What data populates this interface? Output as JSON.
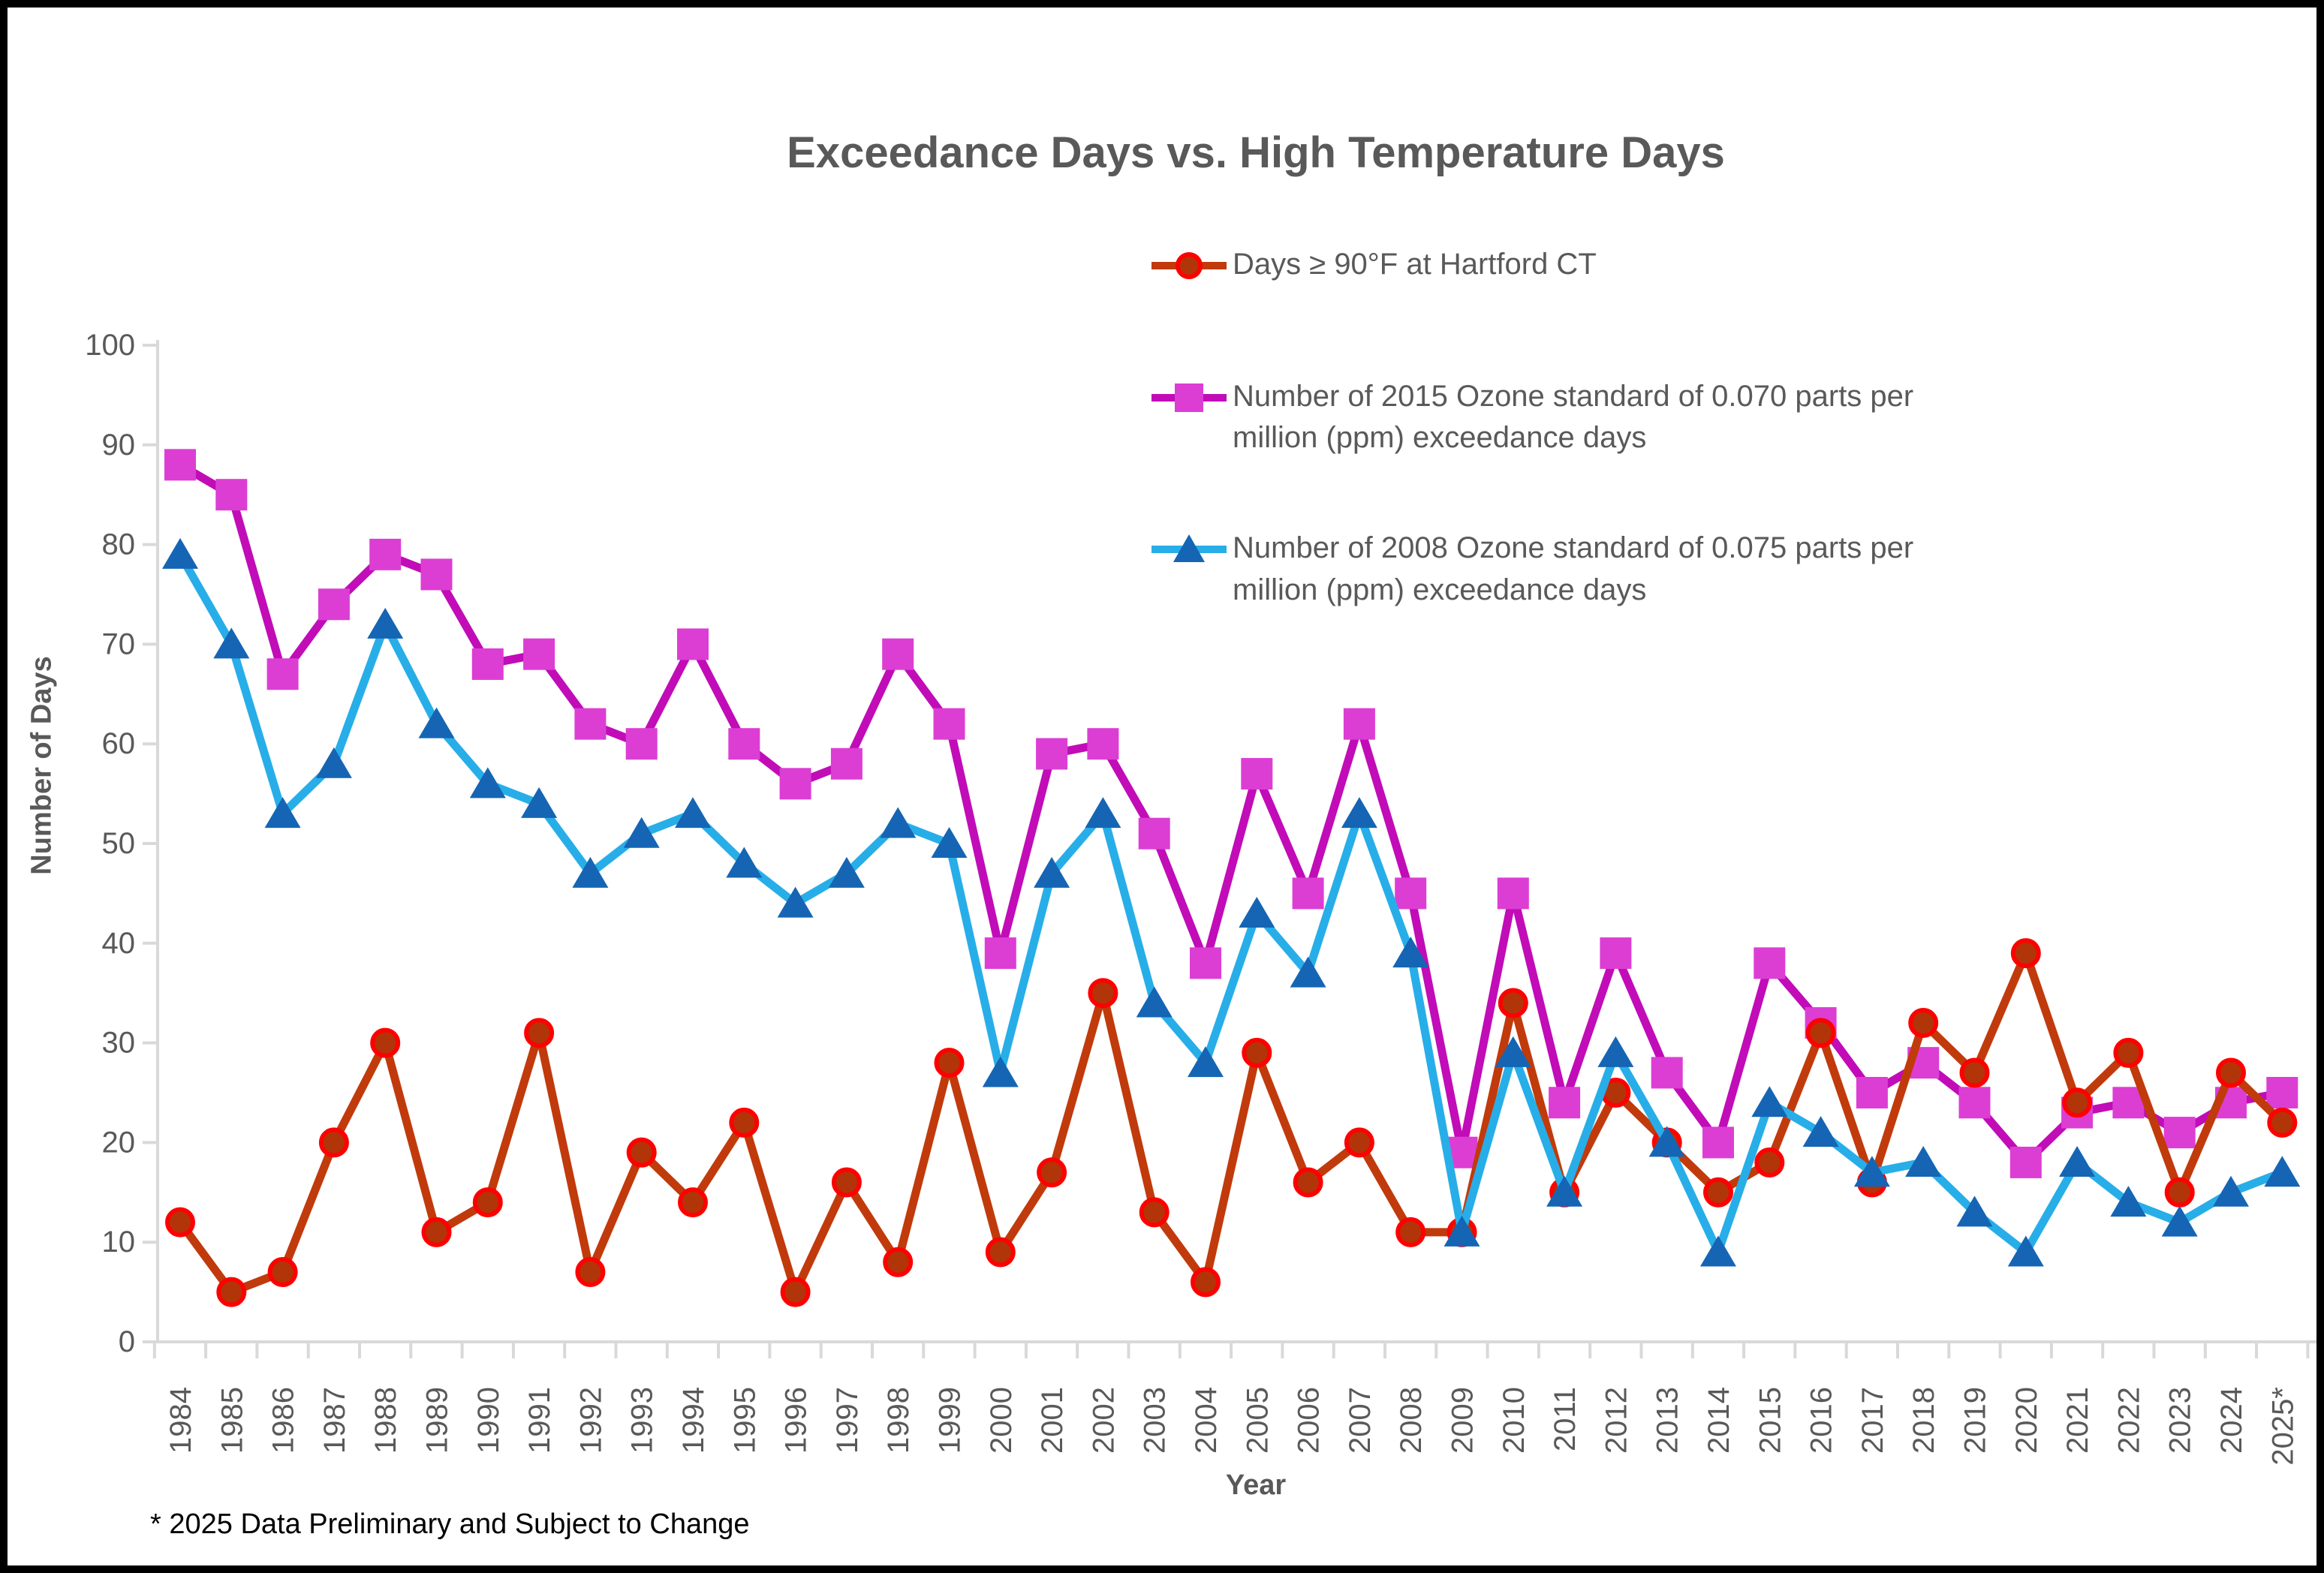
{
  "window": {
    "background": "#FFFFFF",
    "border_color": "#000000"
  },
  "title": "Exceedance Days vs. High Temperature Days",
  "footnote": "* 2025 Data Preliminary and Subject to Change",
  "colors": {
    "title_text": "#595959",
    "axis_text": "#595959",
    "axis_line": "#D9D9D9",
    "footnote_text": "#000000",
    "red_line": "#C13A0C",
    "red_marker_fill": "#B23509",
    "red_marker_outline": "#FE0000",
    "magenta_line": "#C10CB8",
    "magenta_marker_fill": "#DC3ED4",
    "blue_line": "#27AEE8",
    "blue_marker_fill": "#1565B4"
  },
  "chart_data": {
    "type": "line",
    "title": "Exceedance Days vs. High Temperature Days",
    "xlabel": "Year",
    "ylabel": "Number of Days",
    "ylim": [
      0,
      100
    ],
    "ytick_step": 10,
    "grid": false,
    "legend_position": "top-right",
    "categories": [
      "1984",
      "1985",
      "1986",
      "1987",
      "1988",
      "1989",
      "1990",
      "1991",
      "1992",
      "1993",
      "1994",
      "1995",
      "1996",
      "1997",
      "1998",
      "1999",
      "2000",
      "2001",
      "2002",
      "2003",
      "2004",
      "2005",
      "2006",
      "2007",
      "2008",
      "2009",
      "2010",
      "2011",
      "2012",
      "2013",
      "2014",
      "2015",
      "2016",
      "2017",
      "2018",
      "2019",
      "2020",
      "2021",
      "2022",
      "2023",
      "2024",
      "2025*"
    ],
    "series": [
      {
        "name": "Days ≥ 90°F at Hartford CT",
        "marker": "circle",
        "line_color": "#C13A0C",
        "marker_fill": "#B23509",
        "marker_outline": "#FE0000",
        "values": [
          12,
          5,
          7,
          20,
          30,
          11,
          14,
          31,
          7,
          19,
          14,
          22,
          5,
          16,
          8,
          28,
          9,
          17,
          35,
          13,
          6,
          29,
          16,
          20,
          11,
          11,
          34,
          15,
          25,
          20,
          15,
          18,
          31,
          16,
          32,
          27,
          39,
          24,
          29,
          15,
          27,
          22
        ]
      },
      {
        "name": "Number of 2015 Ozone standard of 0.070 parts per million (ppm) exceedance days",
        "marker": "square",
        "line_color": "#C10CB8",
        "marker_fill": "#DC3ED4",
        "marker_outline": "#DC3ED4",
        "values": [
          88,
          85,
          67,
          74,
          79,
          77,
          68,
          69,
          62,
          60,
          70,
          60,
          56,
          58,
          69,
          62,
          39,
          59,
          60,
          51,
          38,
          57,
          45,
          62,
          45,
          19,
          45,
          24,
          39,
          27,
          20,
          38,
          32,
          25,
          28,
          24,
          18,
          23,
          24,
          21,
          24,
          25
        ]
      },
      {
        "name": "Number of 2008 Ozone standard of 0.075 parts per million (ppm) exceedance days",
        "marker": "triangle",
        "line_color": "#27AEE8",
        "marker_fill": "#1565B4",
        "marker_outline": "#1565B4",
        "values": [
          79,
          70,
          53,
          58,
          72,
          62,
          56,
          54,
          47,
          51,
          53,
          48,
          44,
          47,
          52,
          50,
          27,
          47,
          53,
          34,
          28,
          43,
          37,
          53,
          39,
          11,
          29,
          15,
          29,
          20,
          9,
          24,
          21,
          17,
          18,
          13,
          9,
          18,
          14,
          12,
          15,
          17
        ]
      }
    ],
    "draw_order": [
      1,
      0,
      2
    ]
  }
}
